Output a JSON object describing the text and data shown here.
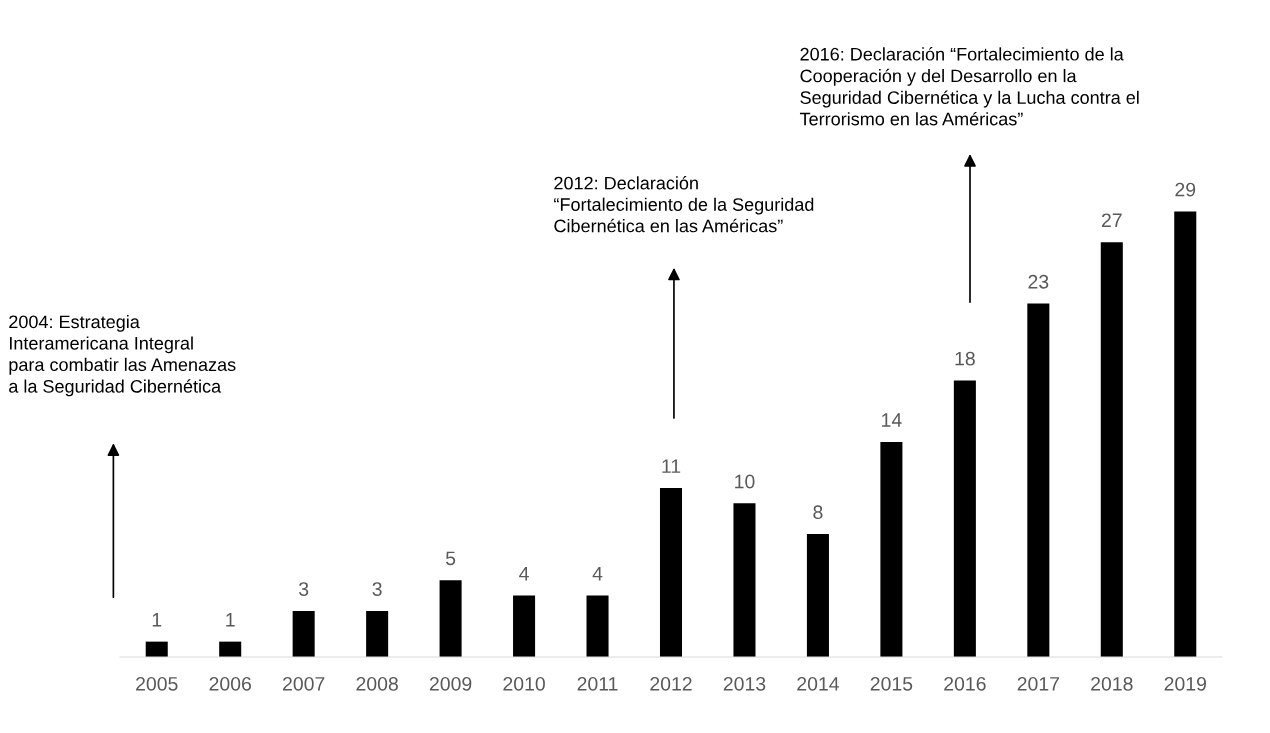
{
  "chart_data": {
    "type": "bar",
    "categories": [
      "2005",
      "2006",
      "2007",
      "2008",
      "2009",
      "2010",
      "2011",
      "2012",
      "2013",
      "2014",
      "2015",
      "2016",
      "2017",
      "2018",
      "2019"
    ],
    "values": [
      1,
      1,
      3,
      3,
      5,
      4,
      4,
      11,
      10,
      8,
      14,
      18,
      23,
      27,
      29
    ],
    "color": "#000000",
    "data_labels": true,
    "grid": false,
    "legend": false,
    "annotations": [
      "2004: Estrategia\nInteramericana Integral\npara combatir las Amenazas\na la Seguridad Cibernética",
      "2012: Declaración\n“Fortalecimiento de la Seguridad\nCibernética en las Américas”",
      "2016: Declaración “Fortalecimiento de la\nCooperación y del Desarrollo en la\nSeguridad Cibernética y la Lucha contra el\nTerrorismo en las Américas”"
    ]
  }
}
